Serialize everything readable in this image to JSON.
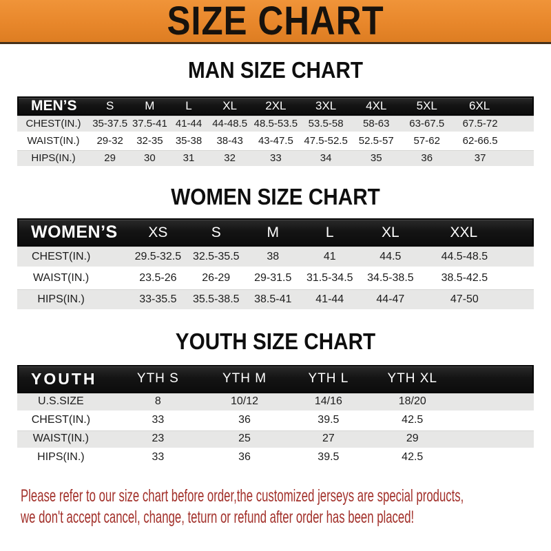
{
  "banner": {
    "title": "SIZE CHART"
  },
  "sections": [
    {
      "heading": "MAN SIZE CHART",
      "table": {
        "header": [
          "MEN’S",
          "S",
          "M",
          "L",
          "XL",
          "2XL",
          "3XL",
          "4XL",
          "5XL",
          "6XL"
        ],
        "rows": [
          [
            "CHEST(IN.)",
            "35-37.5",
            "37.5-41",
            "41-44",
            "44-48.5",
            "48.5-53.5",
            "53.5-58",
            "58-63",
            "63-67.5",
            "67.5-72"
          ],
          [
            "WAIST(IN.)",
            "29-32",
            "32-35",
            "35-38",
            "38-43",
            "43-47.5",
            "47.5-52.5",
            "52.5-57",
            "57-62",
            "62-66.5"
          ],
          [
            "HIPS(IN.)",
            "29",
            "30",
            "31",
            "32",
            "33",
            "34",
            "35",
            "36",
            "37"
          ]
        ]
      }
    },
    {
      "heading": "WOMEN SIZE CHART",
      "table": {
        "header": [
          "WOMEN’S",
          "XS",
          "S",
          "M",
          "L",
          "XL",
          "XXL"
        ],
        "rows": [
          [
            "CHEST(IN.)",
            "29.5-32.5",
            "32.5-35.5",
            "38",
            "41",
            "44.5",
            "44.5-48.5"
          ],
          [
            "WAIST(IN.)",
            "23.5-26",
            "26-29",
            "29-31.5",
            "31.5-34.5",
            "34.5-38.5",
            "38.5-42.5"
          ],
          [
            "HIPS(IN.)",
            "33-35.5",
            "35.5-38.5",
            "38.5-41",
            "41-44",
            "44-47",
            "47-50"
          ]
        ]
      }
    },
    {
      "heading": "YOUTH SIZE CHART",
      "table": {
        "header": [
          "YOUTH",
          "YTH S",
          "YTH M",
          "YTH L",
          "YTH XL"
        ],
        "rows": [
          [
            "U.S.SIZE",
            "8",
            "10/12",
            "14/16",
            "18/20"
          ],
          [
            "CHEST(IN.)",
            "33",
            "36",
            "39.5",
            "42.5"
          ],
          [
            "WAIST(IN.)",
            "23",
            "25",
            "27",
            "29"
          ],
          [
            "HIPS(IN.)",
            "33",
            "36",
            "39.5",
            "42.5"
          ]
        ]
      }
    }
  ],
  "footer": {
    "line1": "Please refer to our size chart before order,the customized jerseys are special products,",
    "line2": "we don't accept cancel, change, teturn or refund after order has been placed!"
  },
  "colors": {
    "banner-bg": "#E8872B",
    "banner-edge": "#46301A",
    "bar-bg": "#141414",
    "bar-text": "#FFFFFF",
    "row-alt": "#E7E7E6",
    "note": "#A2302A",
    "ink": "#1B1B1B"
  }
}
